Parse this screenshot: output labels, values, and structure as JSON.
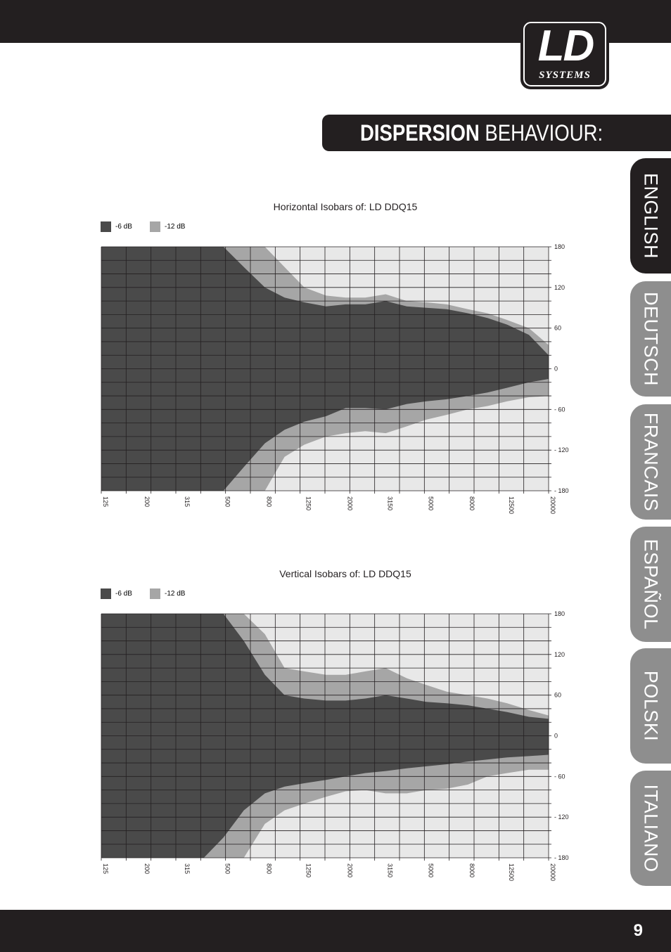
{
  "page": {
    "number": "9"
  },
  "header": {
    "logo": {
      "main": "LD",
      "sub": "SYSTEMS"
    },
    "title": {
      "bold": "DISPERSION",
      "light": "BEHAVIOUR:"
    }
  },
  "colors": {
    "dark": "#231f20",
    "tab_inactive": "#8e8e8e",
    "iso_6db": "#4a4a4a",
    "iso_12db": "#a6a6a6",
    "plot_bg": "#e8e8e8"
  },
  "languages": [
    {
      "label": "ENGLISH",
      "active": true
    },
    {
      "label": "DEUTSCH",
      "active": false
    },
    {
      "label": "FRANCAIS",
      "active": false
    },
    {
      "label": "ESPAÑOL",
      "active": false
    },
    {
      "label": "POLSKI",
      "active": false
    },
    {
      "label": "ITALIANO",
      "active": false
    }
  ],
  "chart_data": [
    {
      "type": "heatmap",
      "title": "Horizontal Isobars of: LD DDQ15",
      "legend": [
        {
          "label": "-6 dB",
          "color": "#4a4a4a"
        },
        {
          "label": "-12 dB",
          "color": "#a6a6a6"
        }
      ],
      "x_ticks": [
        "125",
        "200",
        "315",
        "500",
        "800",
        "1250",
        "2000",
        "3150",
        "5000",
        "8000",
        "12500",
        "20000"
      ],
      "y_ticks": [
        "180",
        "120",
        "60",
        "0",
        "- 60",
        "- 120",
        "- 180"
      ],
      "x_scale": "log",
      "ylim": [
        -180,
        180
      ],
      "bands": {
        "freq_hz": [
          125,
          160,
          200,
          250,
          315,
          400,
          500,
          630,
          800,
          1000,
          1250,
          1600,
          2000,
          2500,
          3150,
          4000,
          5000,
          6300,
          8000,
          10000,
          12500,
          16000,
          20000
        ],
        "minus6_upper_deg": [
          180,
          180,
          180,
          180,
          180,
          180,
          180,
          150,
          120,
          105,
          98,
          92,
          95,
          95,
          100,
          92,
          90,
          88,
          82,
          75,
          65,
          50,
          20
        ],
        "minus6_lower_deg": [
          -180,
          -180,
          -180,
          -180,
          -180,
          -180,
          -180,
          -145,
          -110,
          -90,
          -78,
          -70,
          -58,
          -58,
          -60,
          -52,
          -48,
          -45,
          -40,
          -35,
          -28,
          -20,
          -15
        ],
        "minus12_upper_deg": [
          180,
          180,
          180,
          180,
          180,
          180,
          180,
          180,
          180,
          150,
          120,
          108,
          105,
          105,
          110,
          100,
          98,
          95,
          88,
          82,
          72,
          60,
          35
        ],
        "minus12_lower_deg": [
          -180,
          -180,
          -180,
          -180,
          -180,
          -180,
          -180,
          -180,
          -180,
          -130,
          -112,
          -100,
          -95,
          -92,
          -95,
          -85,
          -75,
          -68,
          -60,
          -55,
          -48,
          -42,
          -40
        ]
      }
    },
    {
      "type": "heatmap",
      "title": "Vertical Isobars of: LD DDQ15",
      "legend": [
        {
          "label": "-6 dB",
          "color": "#4a4a4a"
        },
        {
          "label": "-12 dB",
          "color": "#a6a6a6"
        }
      ],
      "x_ticks": [
        "125",
        "200",
        "315",
        "500",
        "800",
        "1250",
        "2000",
        "3150",
        "5000",
        "8000",
        "12500",
        "20000"
      ],
      "y_ticks": [
        "180",
        "120",
        "60",
        "0",
        "- 60",
        "- 120",
        "- 180"
      ],
      "x_scale": "log",
      "ylim": [
        -180,
        180
      ],
      "bands": {
        "freq_hz": [
          125,
          160,
          200,
          250,
          315,
          400,
          500,
          630,
          800,
          1000,
          1250,
          1600,
          2000,
          2500,
          3150,
          4000,
          5000,
          6300,
          8000,
          10000,
          12500,
          16000,
          20000
        ],
        "minus6_upper_deg": [
          180,
          180,
          180,
          180,
          180,
          180,
          180,
          140,
          90,
          60,
          55,
          52,
          52,
          55,
          60,
          55,
          50,
          48,
          45,
          40,
          35,
          28,
          25
        ],
        "minus6_lower_deg": [
          -180,
          -180,
          -180,
          -180,
          -180,
          -180,
          -150,
          -110,
          -85,
          -75,
          -70,
          -65,
          -60,
          -55,
          -52,
          -48,
          -45,
          -42,
          -38,
          -35,
          -32,
          -30,
          -28
        ],
        "minus12_upper_deg": [
          180,
          180,
          180,
          180,
          180,
          180,
          180,
          180,
          150,
          100,
          95,
          90,
          90,
          95,
          100,
          85,
          75,
          65,
          60,
          55,
          48,
          38,
          30
        ],
        "minus12_lower_deg": [
          -180,
          -180,
          -180,
          -180,
          -180,
          -180,
          -180,
          -180,
          -130,
          -110,
          -100,
          -90,
          -82,
          -80,
          -85,
          -85,
          -80,
          -78,
          -72,
          -60,
          -55,
          -50,
          -50
        ]
      }
    }
  ]
}
